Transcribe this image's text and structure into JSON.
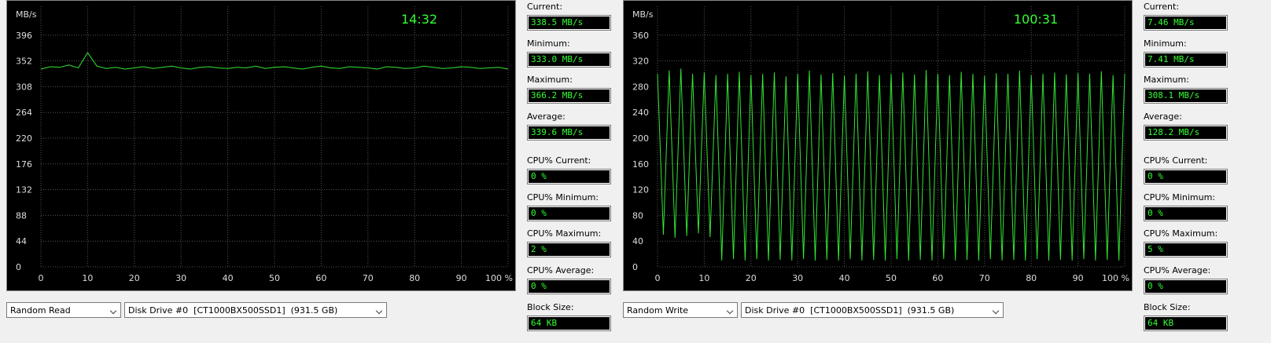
{
  "chart_data": [
    {
      "type": "line",
      "ylabel": "MB/s",
      "annotation": "14:32",
      "xlim": [
        0,
        100
      ],
      "ylim": [
        0,
        440
      ],
      "xticks": [
        0,
        10,
        20,
        30,
        40,
        50,
        60,
        70,
        80,
        90,
        {
          "value": 100,
          "label": "100 %"
        }
      ],
      "yticks": [
        0,
        44,
        88,
        132,
        176,
        220,
        264,
        308,
        352,
        396
      ],
      "grid": true,
      "x": [
        0,
        2,
        4,
        6,
        8,
        10,
        12,
        14,
        16,
        18,
        20,
        22,
        24,
        26,
        28,
        30,
        32,
        34,
        36,
        38,
        40,
        42,
        44,
        46,
        48,
        50,
        52,
        54,
        56,
        58,
        60,
        62,
        64,
        66,
        68,
        70,
        72,
        74,
        76,
        78,
        80,
        82,
        84,
        86,
        88,
        90,
        92,
        94,
        96,
        98,
        100
      ],
      "series": [
        {
          "color": "#33e633",
          "values": [
            338,
            342,
            341,
            345,
            340,
            366,
            343,
            339,
            341,
            338,
            340,
            342,
            339,
            341,
            343,
            340,
            338,
            341,
            342,
            340,
            339,
            341,
            340,
            343,
            339,
            341,
            342,
            340,
            338,
            341,
            343,
            340,
            339,
            342,
            341,
            340,
            338,
            342,
            341,
            339,
            340,
            343,
            341,
            339,
            340,
            342,
            341,
            339,
            340,
            341,
            338
          ]
        }
      ]
    },
    {
      "type": "line",
      "ylabel": "MB/s",
      "annotation": "100:31",
      "xlim": [
        0,
        100
      ],
      "ylim": [
        0,
        400
      ],
      "xticks": [
        0,
        10,
        20,
        30,
        40,
        50,
        60,
        70,
        80,
        90,
        {
          "value": 100,
          "label": "100 %"
        }
      ],
      "yticks": [
        0,
        40,
        80,
        120,
        160,
        200,
        240,
        280,
        320,
        360
      ],
      "grid": true,
      "x": [
        0,
        1.25,
        2.5,
        3.75,
        5,
        6.25,
        7.5,
        8.75,
        10,
        11.25,
        12.5,
        13.75,
        15,
        16.25,
        17.5,
        18.75,
        20,
        21.25,
        22.5,
        23.75,
        25,
        26.25,
        27.5,
        28.75,
        30,
        31.25,
        32.5,
        33.75,
        35,
        36.25,
        37.5,
        38.75,
        40,
        41.25,
        42.5,
        43.75,
        45,
        46.25,
        47.5,
        48.75,
        50,
        51.25,
        52.5,
        53.75,
        55,
        56.25,
        57.5,
        58.75,
        60,
        61.25,
        62.5,
        63.75,
        65,
        66.25,
        67.5,
        68.75,
        70,
        71.25,
        72.5,
        73.75,
        75,
        76.25,
        77.5,
        78.75,
        80,
        81.25,
        82.5,
        83.75,
        85,
        86.25,
        87.5,
        88.75,
        90,
        91.25,
        92.5,
        93.75,
        95,
        96.25,
        97.5,
        98.75,
        100
      ],
      "series": [
        {
          "color": "#33e633",
          "values": [
            300,
            50,
            305,
            45,
            308,
            48,
            300,
            52,
            302,
            46,
            298,
            10,
            300,
            12,
            303,
            10,
            298,
            12,
            300,
            10,
            302,
            11,
            296,
            10,
            300,
            12,
            305,
            10,
            299,
            11,
            301,
            10,
            297,
            12,
            300,
            10,
            304,
            11,
            298,
            10,
            300,
            12,
            302,
            10,
            299,
            11,
            306,
            10,
            300,
            12,
            298,
            10,
            303,
            11,
            300,
            10,
            297,
            12,
            301,
            10,
            300,
            11,
            305,
            10,
            298,
            12,
            300,
            10,
            302,
            11,
            299,
            10,
            301,
            12,
            300,
            10,
            304,
            11,
            298,
            10,
            300
          ]
        }
      ]
    }
  ],
  "panels": [
    {
      "test": "Random Read",
      "drive": "Disk Drive #0  [CT1000BX500SSD1]  (931.5 GB)",
      "stats": [
        {
          "label": "Current:",
          "value": "338.5 MB/s"
        },
        {
          "label": "Minimum:",
          "value": "333.0 MB/s"
        },
        {
          "label": "Maximum:",
          "value": "366.2 MB/s"
        },
        {
          "label": "Average:",
          "value": "339.6 MB/s"
        },
        {
          "label": "CPU% Current:",
          "value": "0 %"
        },
        {
          "label": "CPU% Minimum:",
          "value": "0 %"
        },
        {
          "label": "CPU% Maximum:",
          "value": "2 %"
        },
        {
          "label": "CPU% Average:",
          "value": "0 %"
        },
        {
          "label": "Block Size:",
          "value": "64 KB"
        }
      ]
    },
    {
      "test": "Random Write",
      "drive": "Disk Drive #0  [CT1000BX500SSD1]  (931.5 GB)",
      "stats": [
        {
          "label": "Current:",
          "value": "7.46 MB/s"
        },
        {
          "label": "Minimum:",
          "value": "7.41 MB/s"
        },
        {
          "label": "Maximum:",
          "value": "308.1 MB/s"
        },
        {
          "label": "Average:",
          "value": "128.2 MB/s"
        },
        {
          "label": "CPU% Current:",
          "value": "0 %"
        },
        {
          "label": "CPU% Minimum:",
          "value": "0 %"
        },
        {
          "label": "CPU% Maximum:",
          "value": "5 %"
        },
        {
          "label": "CPU% Average:",
          "value": "0 %"
        },
        {
          "label": "Block Size:",
          "value": "64 KB"
        }
      ]
    }
  ]
}
